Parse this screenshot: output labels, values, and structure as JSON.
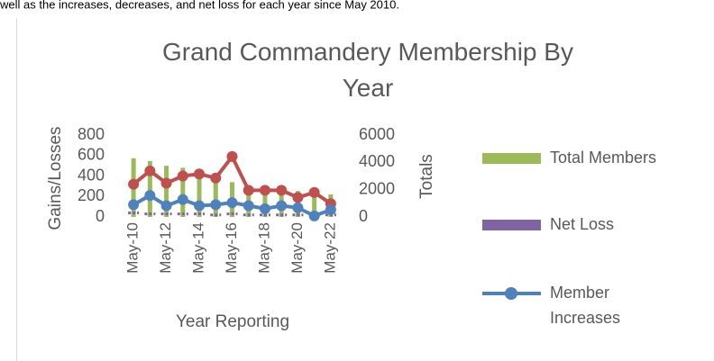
{
  "intro_text": "well as the increases, decreases, and net loss for each year since May 2010.",
  "chart_data": {
    "type": "combo",
    "title": "Grand Commandery Membership By Year",
    "x_label": "Year Reporting",
    "y_label": "Gains/Losses",
    "y2_label": "Totals",
    "categories": [
      "May-10",
      null,
      "May-12",
      null,
      "May-14",
      null,
      "May-16",
      null,
      "May-18",
      null,
      "May-20",
      null,
      "May-22"
    ],
    "ylim": [
      0,
      800
    ],
    "yticks": [
      0,
      200,
      400,
      600,
      800
    ],
    "y2lim": [
      0,
      6000
    ],
    "y2ticks": [
      0,
      2000,
      4000,
      6000
    ],
    "series": [
      {
        "name": "Total Members",
        "type": "bar",
        "axis": "y2",
        "color": "#9bbb59",
        "values": [
          4300,
          4100,
          3750,
          3600,
          3350,
          3150,
          2550,
          2050,
          1850,
          1650,
          1900,
          1600,
          1650
        ]
      },
      {
        "name": "Net Loss",
        "type": "dash",
        "color": "#8064a2",
        "values": [
          40,
          30,
          30,
          30,
          30,
          20,
          30,
          20,
          20,
          20,
          20,
          20,
          20
        ]
      },
      {
        "type": "line",
        "color": "#c0504d",
        "values": [
          320,
          450,
          330,
          400,
          420,
          380,
          590,
          260,
          260,
          260,
          190,
          240,
          130
        ]
      },
      {
        "name": "Member Increases",
        "type": "line",
        "color": "#4f81bd",
        "values": [
          120,
          210,
          110,
          170,
          110,
          120,
          140,
          110,
          80,
          110,
          90,
          10,
          70
        ]
      }
    ]
  }
}
